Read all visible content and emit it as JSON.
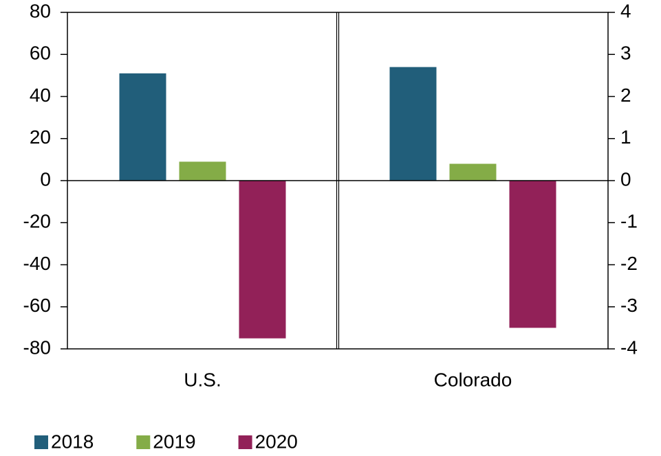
{
  "chart_data": {
    "type": "bar",
    "categories": [
      "U.S.",
      "Colorado"
    ],
    "category_axes": [
      "y",
      "y2"
    ],
    "series": [
      {
        "name": "2018",
        "color": "#215e7a",
        "values": [
          51,
          2.7
        ]
      },
      {
        "name": "2019",
        "color": "#84ac47",
        "values": [
          9,
          0.4
        ]
      },
      {
        "name": "2020",
        "color": "#922158",
        "values": [
          -75,
          -3.5
        ]
      }
    ],
    "ylim": [
      -80,
      80
    ],
    "yticks": [
      -80,
      -60,
      -40,
      -20,
      0,
      20,
      40,
      60,
      80
    ],
    "y2lim": [
      -4,
      4
    ],
    "y2ticks": [
      -4,
      -3,
      -2,
      -1,
      0,
      1,
      2,
      3,
      4
    ],
    "legend": "bottom-left"
  }
}
